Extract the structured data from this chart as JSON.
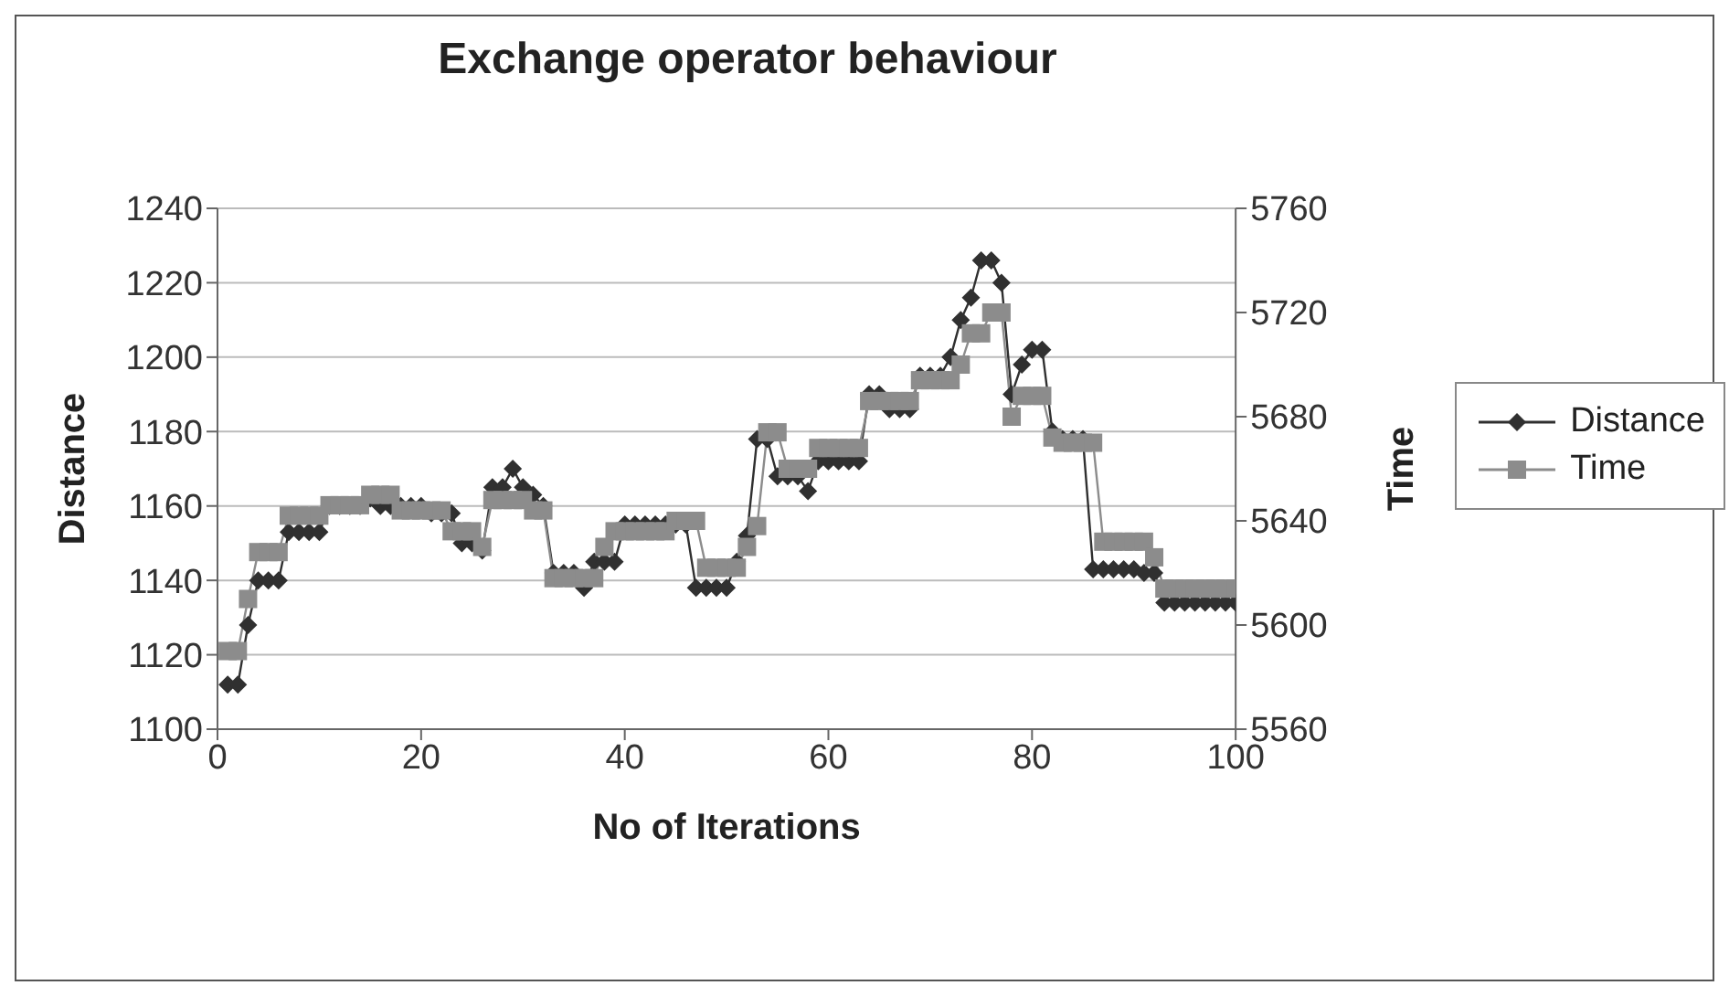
{
  "chart_data": {
    "type": "line",
    "title": "Exchange operator behaviour",
    "xlabel": "No of Iterations",
    "ylabel": "Distance",
    "y2label": "Time",
    "x": [
      1,
      2,
      3,
      4,
      5,
      6,
      7,
      8,
      9,
      10,
      11,
      12,
      13,
      14,
      15,
      16,
      17,
      18,
      19,
      20,
      21,
      22,
      23,
      24,
      25,
      26,
      27,
      28,
      29,
      30,
      31,
      32,
      33,
      34,
      35,
      36,
      37,
      38,
      39,
      40,
      41,
      42,
      43,
      44,
      45,
      46,
      47,
      48,
      49,
      50,
      51,
      52,
      53,
      54,
      55,
      56,
      57,
      58,
      59,
      60,
      61,
      62,
      63,
      64,
      65,
      66,
      67,
      68,
      69,
      70,
      71,
      72,
      73,
      74,
      75,
      76,
      77,
      78,
      79,
      80,
      81,
      82,
      83,
      84,
      85,
      86,
      87,
      88,
      89,
      90,
      91,
      92,
      93,
      94,
      95,
      96,
      97,
      98,
      99,
      100
    ],
    "xlim": [
      0,
      100
    ],
    "xticks": [
      0,
      20,
      40,
      60,
      80,
      100
    ],
    "ylim": [
      1100,
      1240
    ],
    "yticks": [
      1100,
      1120,
      1140,
      1160,
      1180,
      1200,
      1220,
      1240
    ],
    "y2lim": [
      5560,
      5760
    ],
    "y2ticks": [
      5560,
      5600,
      5640,
      5680,
      5720,
      5760
    ],
    "grid": "y",
    "legend": "right",
    "series": [
      {
        "name": "Distance",
        "color": "#303030",
        "marker": "diamond",
        "values": [
          1112,
          1112,
          1128,
          1140,
          1140,
          1140,
          1153,
          1153,
          1153,
          1153,
          1160,
          1160,
          1160,
          1160,
          1162,
          1160,
          1160,
          1160,
          1160,
          1160,
          1158,
          1158,
          1158,
          1150,
          1150,
          1148,
          1165,
          1165,
          1170,
          1165,
          1163,
          1160,
          1142,
          1142,
          1142,
          1138,
          1145,
          1145,
          1145,
          1155,
          1155,
          1155,
          1155,
          1155,
          1155,
          1155,
          1138,
          1138,
          1138,
          1138,
          1145,
          1152,
          1178,
          1178,
          1168,
          1168,
          1168,
          1164,
          1172,
          1172,
          1172,
          1172,
          1172,
          1190,
          1190,
          1186,
          1186,
          1186,
          1195,
          1195,
          1195,
          1200,
          1210,
          1216,
          1226,
          1226,
          1220,
          1190,
          1198,
          1202,
          1202,
          1180,
          1178,
          1178,
          1178,
          1143,
          1143,
          1143,
          1143,
          1143,
          1142,
          1142,
          1134,
          1134,
          1134,
          1134,
          1134,
          1134,
          1134,
          1134
        ]
      },
      {
        "name": "Time",
        "color": "#8c8c8c",
        "marker": "square",
        "axis": "y2",
        "values": [
          5590,
          5590,
          5610,
          5628,
          5628,
          5628,
          5642,
          5642,
          5642,
          5642,
          5646,
          5646,
          5646,
          5646,
          5650,
          5650,
          5650,
          5644,
          5644,
          5644,
          5644,
          5644,
          5636,
          5636,
          5636,
          5630,
          5648,
          5648,
          5648,
          5648,
          5644,
          5644,
          5618,
          5618,
          5618,
          5618,
          5618,
          5630,
          5636,
          5636,
          5636,
          5636,
          5636,
          5636,
          5640,
          5640,
          5640,
          5622,
          5622,
          5622,
          5622,
          5630,
          5638,
          5674,
          5674,
          5660,
          5660,
          5660,
          5668,
          5668,
          5668,
          5668,
          5668,
          5686,
          5686,
          5686,
          5686,
          5686,
          5694,
          5694,
          5694,
          5694,
          5700,
          5712,
          5712,
          5720,
          5720,
          5680,
          5688,
          5688,
          5688,
          5672,
          5670,
          5670,
          5670,
          5670,
          5632,
          5632,
          5632,
          5632,
          5632,
          5626,
          5614,
          5614,
          5614,
          5614,
          5614,
          5614,
          5614,
          5614
        ]
      }
    ]
  }
}
